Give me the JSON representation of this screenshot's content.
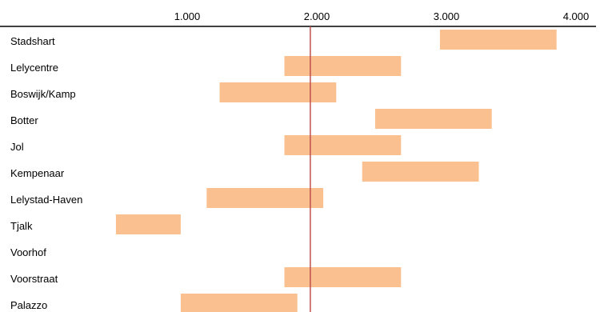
{
  "chart_data": {
    "type": "bar",
    "orientation": "horizontal-range",
    "title": "",
    "xlabel": "",
    "ylabel": "",
    "x_axis_position": "top",
    "xlim": [
      0,
      4000
    ],
    "x_ticks": [
      1000,
      2000,
      3000,
      4000
    ],
    "x_tick_labels": [
      "1.000",
      "2.000",
      "3.000",
      "4.000"
    ],
    "grid": false,
    "legend": "none",
    "categories": [
      "Stadshart",
      "Lelycentre",
      "Boswijk/Kamp",
      "Botter",
      "Jol",
      "Kempenaar",
      "Lelystad-Haven",
      "Tjalk",
      "Voorhof",
      "Voorstraat",
      "Palazzo"
    ],
    "ranges": [
      [
        2950,
        3850
      ],
      [
        1750,
        2650
      ],
      [
        1250,
        2150
      ],
      [
        2450,
        3350
      ],
      [
        1750,
        2650
      ],
      [
        2350,
        3250
      ],
      [
        1150,
        2050
      ],
      [
        450,
        950
      ],
      null,
      [
        1750,
        2650
      ],
      [
        950,
        1850
      ]
    ],
    "reference_line": 1950,
    "colors": {
      "bar": "#fac090",
      "reference_line": "#c0504d",
      "axis": "#000000"
    }
  }
}
